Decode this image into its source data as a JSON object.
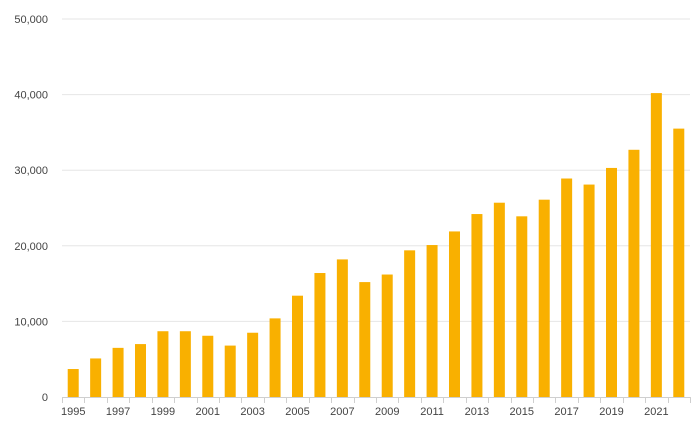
{
  "chart_data": {
    "type": "bar",
    "title": "",
    "xlabel": "",
    "ylabel": "",
    "categories": [
      "1995",
      "1996",
      "1997",
      "1998",
      "1999",
      "2000",
      "2001",
      "2002",
      "2003",
      "2004",
      "2005",
      "2006",
      "2007",
      "2008",
      "2009",
      "2010",
      "2011",
      "2012",
      "2013",
      "2014",
      "2015",
      "2016",
      "2017",
      "2018",
      "2019",
      "2020",
      "2021",
      "2022"
    ],
    "values": [
      3700,
      5100,
      6500,
      7000,
      8700,
      8700,
      8100,
      6800,
      8500,
      10400,
      13400,
      16400,
      18200,
      15200,
      16200,
      19400,
      20100,
      21900,
      24200,
      25700,
      23900,
      26100,
      28900,
      28100,
      30300,
      32700,
      40200,
      35500
    ],
    "x_tick_labels": [
      "1995",
      "1997",
      "1999",
      "2001",
      "2003",
      "2005",
      "2007",
      "2009",
      "2011",
      "2013",
      "2015",
      "2017",
      "2019",
      "2021"
    ],
    "y_tick_labels": [
      "0",
      "10,000",
      "20,000",
      "30,000",
      "40,000",
      "50,000"
    ],
    "y_ticks": [
      0,
      10000,
      20000,
      30000,
      40000,
      50000
    ],
    "ylim": [
      0,
      50000
    ],
    "grid": true,
    "legend": "none",
    "bar_color": "#f9b000"
  }
}
